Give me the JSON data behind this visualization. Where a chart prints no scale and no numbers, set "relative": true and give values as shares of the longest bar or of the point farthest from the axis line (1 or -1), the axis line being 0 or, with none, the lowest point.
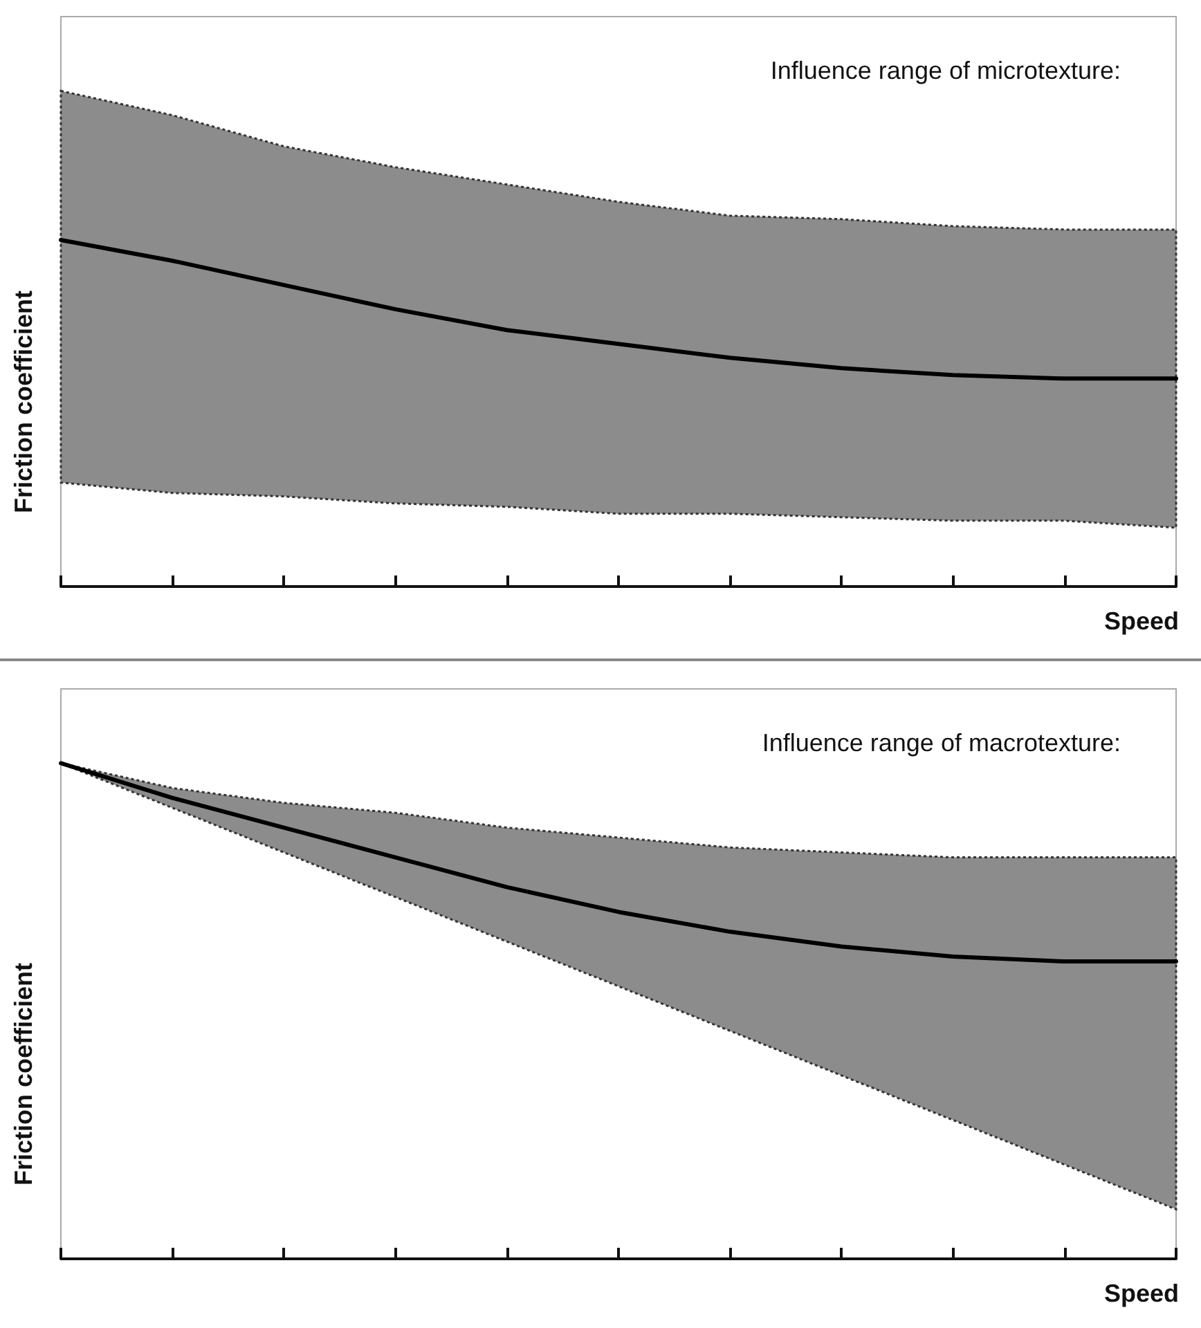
{
  "chart_data": [
    {
      "type": "line",
      "relative": true,
      "xlabel": "Speed",
      "ylabel": "Friction coefficient",
      "annotations": [
        "Influence range of microtexture:"
      ],
      "marker": "none",
      "categories": [
        null,
        null,
        null,
        null,
        null,
        null,
        null,
        null,
        null,
        null,
        null
      ],
      "series": [
        {
          "color": "#000000",
          "values": [
            1.0,
            0.94,
            0.87,
            0.8,
            0.74,
            0.7,
            0.66,
            0.63,
            0.61,
            0.6,
            0.6
          ],
          "lower": [
            0.3,
            0.27,
            0.26,
            0.24,
            0.23,
            0.21,
            0.21,
            0.2,
            0.19,
            0.19,
            0.17
          ],
          "upper": [
            1.43,
            1.36,
            1.27,
            1.21,
            1.16,
            1.11,
            1.07,
            1.06,
            1.04,
            1.03,
            1.03
          ]
        }
      ]
    },
    {
      "type": "line",
      "relative": true,
      "xlabel": "Speed",
      "ylabel": "Friction coefficient",
      "annotations": [
        "Influence range of macrotexture:"
      ],
      "marker": "none",
      "categories": [
        null,
        null,
        null,
        null,
        null,
        null,
        null,
        null,
        null,
        null,
        null
      ],
      "series": [
        {
          "color": "#000000",
          "values": [
            1.0,
            0.93,
            0.87,
            0.81,
            0.75,
            0.7,
            0.66,
            0.63,
            0.61,
            0.6,
            0.6
          ],
          "lower": [
            1.0,
            0.91,
            0.82,
            0.73,
            0.64,
            0.55,
            0.46,
            0.37,
            0.28,
            0.19,
            0.1
          ],
          "upper": [
            1.0,
            0.95,
            0.92,
            0.9,
            0.87,
            0.85,
            0.83,
            0.82,
            0.81,
            0.81,
            0.81
          ]
        }
      ]
    }
  ]
}
